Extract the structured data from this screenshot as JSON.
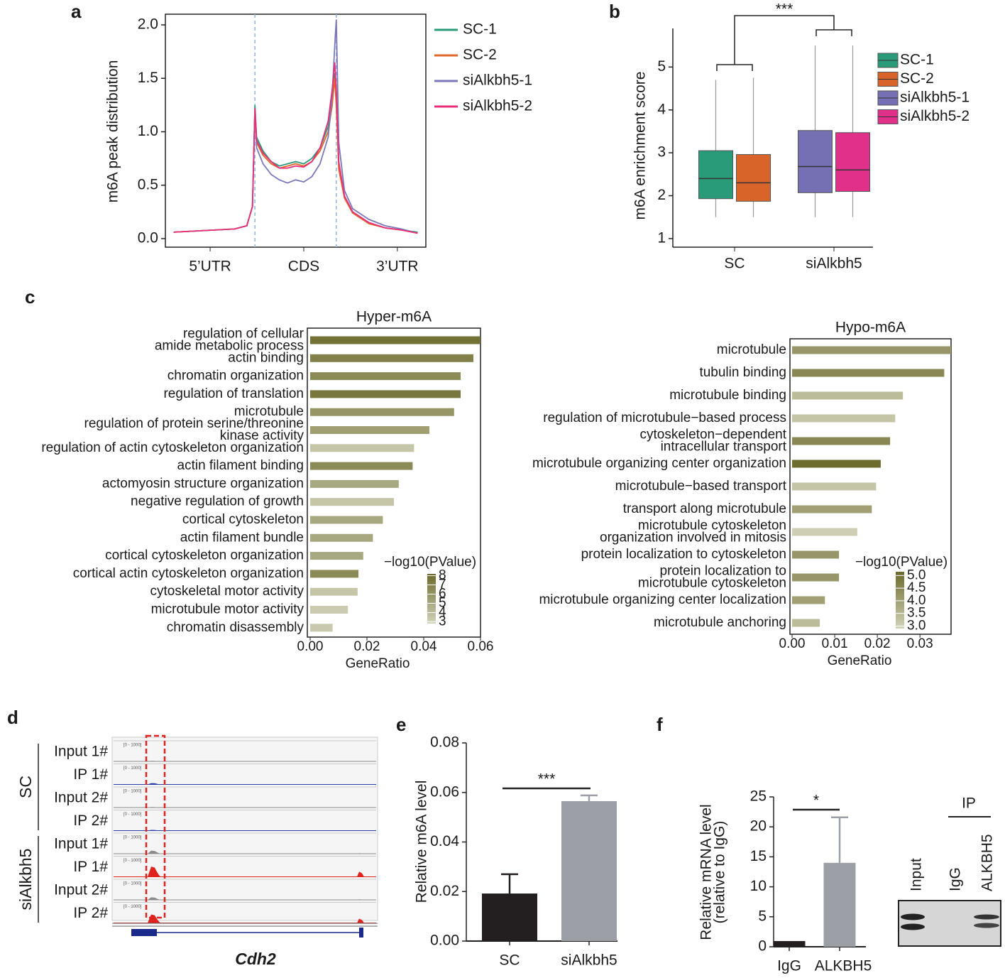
{
  "chart_data": [
    {
      "type": "line",
      "panel": "a",
      "ylabel": "m6A peak distribution",
      "x": [
        0,
        0.25,
        0.5,
        0.75,
        0.9,
        0.97,
        1.0,
        1.02,
        1.1,
        1.2,
        1.3,
        1.4,
        1.5,
        1.6,
        1.7,
        1.8,
        1.9,
        1.95,
        1.98,
        2.0,
        2.03,
        2.1,
        2.2,
        2.4,
        2.6,
        2.8,
        3.0
      ],
      "series": [
        {
          "name": "SC-1",
          "color": "#2a9b78",
          "values": [
            0.06,
            0.07,
            0.08,
            0.09,
            0.12,
            0.3,
            1.25,
            0.95,
            0.82,
            0.72,
            0.68,
            0.7,
            0.72,
            0.7,
            0.75,
            0.85,
            1.05,
            1.3,
            1.55,
            1.3,
            0.7,
            0.4,
            0.25,
            0.15,
            0.1,
            0.08,
            0.06
          ]
        },
        {
          "name": "SC-2",
          "color": "#e0662a",
          "values": [
            0.06,
            0.07,
            0.08,
            0.09,
            0.12,
            0.3,
            1.2,
            0.9,
            0.78,
            0.7,
            0.66,
            0.68,
            0.7,
            0.68,
            0.72,
            0.82,
            1.0,
            1.25,
            1.5,
            1.25,
            0.65,
            0.38,
            0.24,
            0.14,
            0.1,
            0.08,
            0.05
          ]
        },
        {
          "name": "siAlkbh5-1",
          "color": "#7b78b8",
          "values": [
            0.06,
            0.07,
            0.08,
            0.09,
            0.12,
            0.3,
            1.2,
            0.85,
            0.7,
            0.6,
            0.55,
            0.52,
            0.55,
            0.53,
            0.58,
            0.7,
            0.95,
            1.35,
            1.8,
            2.05,
            0.9,
            0.45,
            0.28,
            0.18,
            0.12,
            0.09,
            0.05
          ]
        },
        {
          "name": "siAlkbh5-2",
          "color": "#e8307a",
          "values": [
            0.06,
            0.07,
            0.08,
            0.09,
            0.12,
            0.3,
            1.22,
            0.92,
            0.8,
            0.72,
            0.66,
            0.66,
            0.68,
            0.67,
            0.72,
            0.85,
            1.1,
            1.4,
            1.65,
            1.4,
            0.72,
            0.4,
            0.25,
            0.15,
            0.1,
            0.08,
            0.05
          ]
        }
      ],
      "xlim": [
        -0.1,
        3.1
      ],
      "xticks": [
        {
          "value": 0.45,
          "label": "5’UTR"
        },
        {
          "value": 1.6,
          "label": "CDS"
        },
        {
          "value": 2.75,
          "label": "3’UTR"
        }
      ],
      "ylim": [
        -0.08,
        2.1
      ],
      "yticks": [
        {
          "value": 0,
          "label": "0.0"
        },
        0.5,
        {
          "value": 1,
          "label": "1.0"
        },
        1.5,
        {
          "value": 2,
          "label": "2.0"
        }
      ],
      "region_boundaries": [
        1,
        2
      ],
      "legend": "outside-right"
    },
    {
      "type": "box",
      "panel": "b",
      "ylabel": "m6A enrichment score",
      "annotation": "***",
      "ylim": [
        0.8,
        5.9
      ],
      "yticks": [
        1,
        2,
        3,
        4,
        5
      ],
      "legend": "outside-right",
      "groups": [
        {
          "label": "SC",
          "boxes": [
            {
              "name": "SC-1",
              "color": "#2a9b78",
              "whisker_low": 1.5,
              "q1": 1.93,
              "median": 2.4,
              "q3": 3.05,
              "whisker_high": 4.7
            },
            {
              "name": "SC-2",
              "color": "#d9642a",
              "whisker_low": 1.5,
              "q1": 1.87,
              "median": 2.3,
              "q3": 2.96,
              "whisker_high": 4.75
            }
          ]
        },
        {
          "label": "siAlkbh5",
          "boxes": [
            {
              "name": "siAlkbh5-1",
              "color": "#7570b3",
              "whisker_low": 1.5,
              "q1": 2.07,
              "median": 2.68,
              "q3": 3.52,
              "whisker_high": 5.5
            },
            {
              "name": "siAlkbh5-2",
              "color": "#e0308a",
              "whisker_low": 1.5,
              "q1": 2.1,
              "median": 2.6,
              "q3": 3.47,
              "whisker_high": 5.5
            }
          ]
        }
      ]
    },
    {
      "type": "barh",
      "panel": "c",
      "title": "Hyper-m6A",
      "xlabel": "GeneRatio",
      "categories": [
        "regulation of cellular\namide metabolic process",
        "actin binding",
        "chromatin organization",
        "regulation of translation",
        "microtubule",
        "regulation of protein serine/threonine\nkinase activity",
        "regulation of actin cytoskeleton organization",
        "actin filament binding",
        "actomyosin structure organization",
        "negative regulation of growth",
        "cortical cytoskeleton",
        "actin filament bundle",
        "cortical cytoskeleton organization",
        "cortical actin cytoskeleton organization",
        "cytoskeletal motor activity",
        "microtubule motor activity",
        "chromatin disassembly"
      ],
      "values": [
        0.06,
        0.0575,
        0.053,
        0.053,
        0.0507,
        0.042,
        0.0366,
        0.0361,
        0.0312,
        0.0295,
        0.0256,
        0.0221,
        0.0187,
        0.017,
        0.0167,
        0.0133,
        0.0079
      ],
      "color_values": [
        7.8,
        7,
        6.5,
        7.5,
        6,
        5.5,
        3.5,
        6.5,
        5,
        3.5,
        5,
        5,
        5,
        6.5,
        3.5,
        3.2,
        3.3
      ],
      "colorbar": {
        "title": "−log10(PValue)",
        "ticks": [
          3,
          4,
          5,
          6,
          7,
          8
        ],
        "lim": [
          2.8,
          8.2
        ],
        "colors": [
          "#d2d3b9",
          "#6b6a2c"
        ]
      },
      "xlim": [
        -0.001,
        0.06
      ],
      "xticks": [
        {
          "value": 0,
          "label": "0.00"
        },
        0.02,
        0.04,
        0.06
      ]
    },
    {
      "type": "barh",
      "title": "Hypo-m6A",
      "xlabel": "GeneRatio",
      "categories": [
        "microtubule",
        "tubulin binding",
        "microtubule binding",
        "regulation of microtubule−based process",
        "cytoskeleton−dependent\nintracellular transport",
        "microtubule organizing center organization",
        "microtubule−based transport",
        "transport along microtubule",
        "microtubule cytoskeleton\norganization involved in mitosis",
        "protein localization to cytoskeleton",
        "protein localization to\nmicrotubule cytoskeleton",
        "microtubule organizing center localization",
        "microtubule anchoring"
      ],
      "values": [
        0.0373,
        0.0357,
        0.026,
        0.0242,
        0.023,
        0.0208,
        0.0197,
        0.0187,
        0.0153,
        0.011,
        0.011,
        0.0077,
        0.0065
      ],
      "color_values": [
        4.2,
        4.5,
        3.4,
        3.2,
        4.5,
        5.1,
        3.2,
        4,
        3,
        4.2,
        4.2,
        4,
        3.4
      ],
      "colorbar": {
        "title": "−log10(PValue)",
        "ticks": [
          {
            "value": 3,
            "label": "3.0"
          },
          3.5,
          {
            "value": 4,
            "label": "4.0"
          },
          4.5,
          {
            "value": 5,
            "label": "5.0"
          }
        ],
        "lim": [
          2.9,
          5.15
        ],
        "colors": [
          "#d2d3b9",
          "#6b6a2c"
        ]
      },
      "xlim": [
        -0.0005,
        0.0373
      ],
      "xticks": [
        {
          "value": 0,
          "label": "0.00"
        },
        0.01,
        0.02,
        0.03
      ]
    },
    {
      "type": "tracks",
      "panel": "d",
      "gene": "Cdh2",
      "ylim": [
        0,
        1000
      ],
      "groups": [
        {
          "label": "SC",
          "tracks": [
            {
              "label": "Input 1#",
              "range": "[0 - 1000]",
              "color": "#8c8c8c",
              "peak": 30,
              "end_peak": 10
            },
            {
              "label": "IP 1#",
              "range": "[0 - 1000]",
              "color": "#2b3fa8",
              "peak": 80,
              "end_peak": 20
            },
            {
              "label": "Input 2#",
              "range": "[0 - 1000]",
              "color": "#8c8c8c",
              "peak": 30,
              "end_peak": 10
            },
            {
              "label": "IP 2#",
              "range": "[0 - 1000]",
              "color": "#2b3fa8",
              "peak": 40,
              "end_peak": 20
            }
          ]
        },
        {
          "label": "siAlkbh5",
          "tracks": [
            {
              "label": "Input 1#",
              "range": "[0 - 1000]",
              "color": "#8c8c8c",
              "peak": 180,
              "end_peak": 30
            },
            {
              "label": "IP 1#",
              "range": "[0 - 1000]",
              "color": "#e0231f",
              "peak": 600,
              "end_peak": 300
            },
            {
              "label": "Input 2#",
              "range": "[0 - 1000]",
              "color": "#8c8c8c",
              "peak": 150,
              "end_peak": 30
            },
            {
              "label": "IP 2#",
              "range": "[0 - 1000]",
              "color": "#e0231f",
              "peak": 500,
              "end_peak": 250
            }
          ]
        }
      ]
    },
    {
      "type": "bar",
      "panel": "e",
      "ylabel": "Relative m6A level",
      "annotation": "***",
      "categories": [
        "SC",
        "siAlkbh5"
      ],
      "values": [
        0.0192,
        0.0565
      ],
      "errors": [
        0.0078,
        0.0023
      ],
      "colors": [
        "#231f20",
        "#9d9fa6"
      ],
      "ylim": [
        0,
        0.08
      ],
      "yticks": [
        {
          "value": 0,
          "label": "0.00"
        },
        0.02,
        0.04,
        0.06,
        0.08
      ]
    },
    {
      "type": "bar",
      "panel": "f",
      "ylabel": "Relative mRNA level\n(relative to IgG)",
      "annotation": "*",
      "categories": [
        "IgG",
        "ALKBH5"
      ],
      "values": [
        0.95,
        14
      ],
      "errors": [
        null,
        7.6
      ],
      "colors": [
        "#231f20",
        "#9d9fa6"
      ],
      "ylim": [
        0,
        25
      ],
      "yticks": [
        0,
        5,
        10,
        15,
        20,
        25
      ],
      "blot": {
        "title": "IP",
        "lanes": [
          "Input",
          "IgG",
          "ALKBH5"
        ]
      }
    }
  ]
}
